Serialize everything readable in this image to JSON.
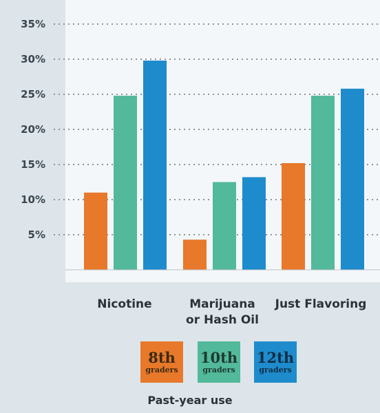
{
  "chart_data": {
    "type": "bar",
    "categories": [
      [
        "Nicotine"
      ],
      [
        "Marijuana",
        "or Hash Oil"
      ],
      [
        "Just Flavoring"
      ]
    ],
    "series": [
      {
        "name": "8th graders",
        "values": [
          11,
          4.3,
          15.2
        ]
      },
      {
        "name": "10th graders",
        "values": [
          24.8,
          12.5,
          24.8
        ]
      },
      {
        "name": "12th graders",
        "values": [
          29.8,
          13.2,
          25.8
        ]
      }
    ],
    "y_ticks": [
      "5%",
      "10%",
      "15%",
      "20%",
      "25%",
      "30%",
      "35%"
    ],
    "ylim": [
      0,
      35
    ],
    "grid": true,
    "legend_position": "bottom"
  },
  "colors": {
    "s8": "#e8782a",
    "s10": "#52b99a",
    "s12": "#1e8bcc",
    "plot_bg": "#f4f7f9",
    "page_bg": "#dde5ea"
  },
  "legend": {
    "items": [
      {
        "num": "8th",
        "sub": "graders",
        "color": "#e8782a",
        "text_color": "#3a2a10"
      },
      {
        "num": "10th",
        "sub": "graders",
        "color": "#52b99a",
        "text_color": "#1e3a30"
      },
      {
        "num": "12th",
        "sub": "graders",
        "color": "#1e8bcc",
        "text_color": "#0e2d44"
      }
    ],
    "caption": "Past-year use"
  }
}
